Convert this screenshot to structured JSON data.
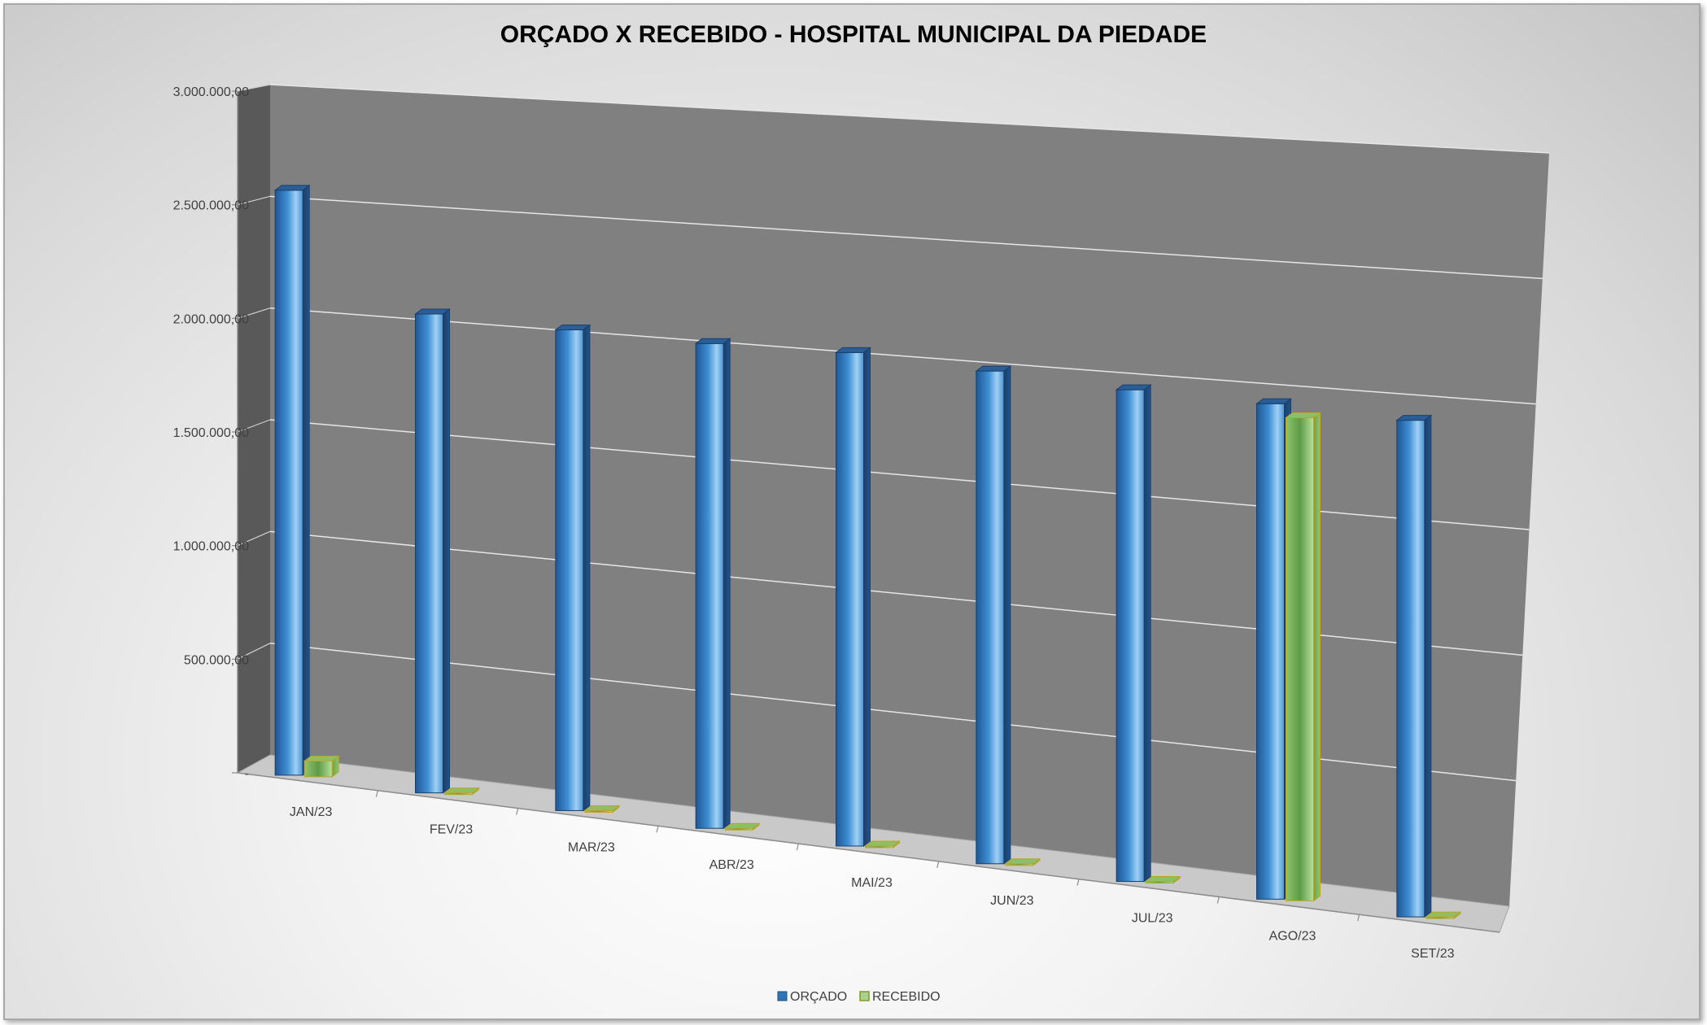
{
  "chart_data": {
    "type": "bar",
    "title": "ORÇADO X RECEBIDO - HOSPITAL MUNICIPAL DA PIEDADE",
    "categories": [
      "JAN/23",
      "FEV/23",
      "MAR/23",
      "ABR/23",
      "MAI/23",
      "JUN/23",
      "JUL/23",
      "AGO/23",
      "SET/23"
    ],
    "series": [
      {
        "name": "ORÇADO",
        "values": [
          2600000,
          2100000,
          2080000,
          2070000,
          2080000,
          2050000,
          2020000,
          2010000,
          1990000
        ],
        "color": "#2e75b6"
      },
      {
        "name": "RECEBIDO",
        "values": [
          70000,
          0,
          0,
          0,
          0,
          0,
          0,
          1960000,
          0
        ],
        "color": "#a9d18e"
      }
    ],
    "y_ticks": [
      "-",
      "500.000,00",
      "1.000.000,00",
      "1.500.000,00",
      "2.000.000,00",
      "2.500.000,00",
      "3.000.000,00"
    ],
    "ylim": [
      0,
      3000000
    ],
    "grid": true,
    "legend_position": "bottom",
    "style": "3d-clustered-column"
  }
}
